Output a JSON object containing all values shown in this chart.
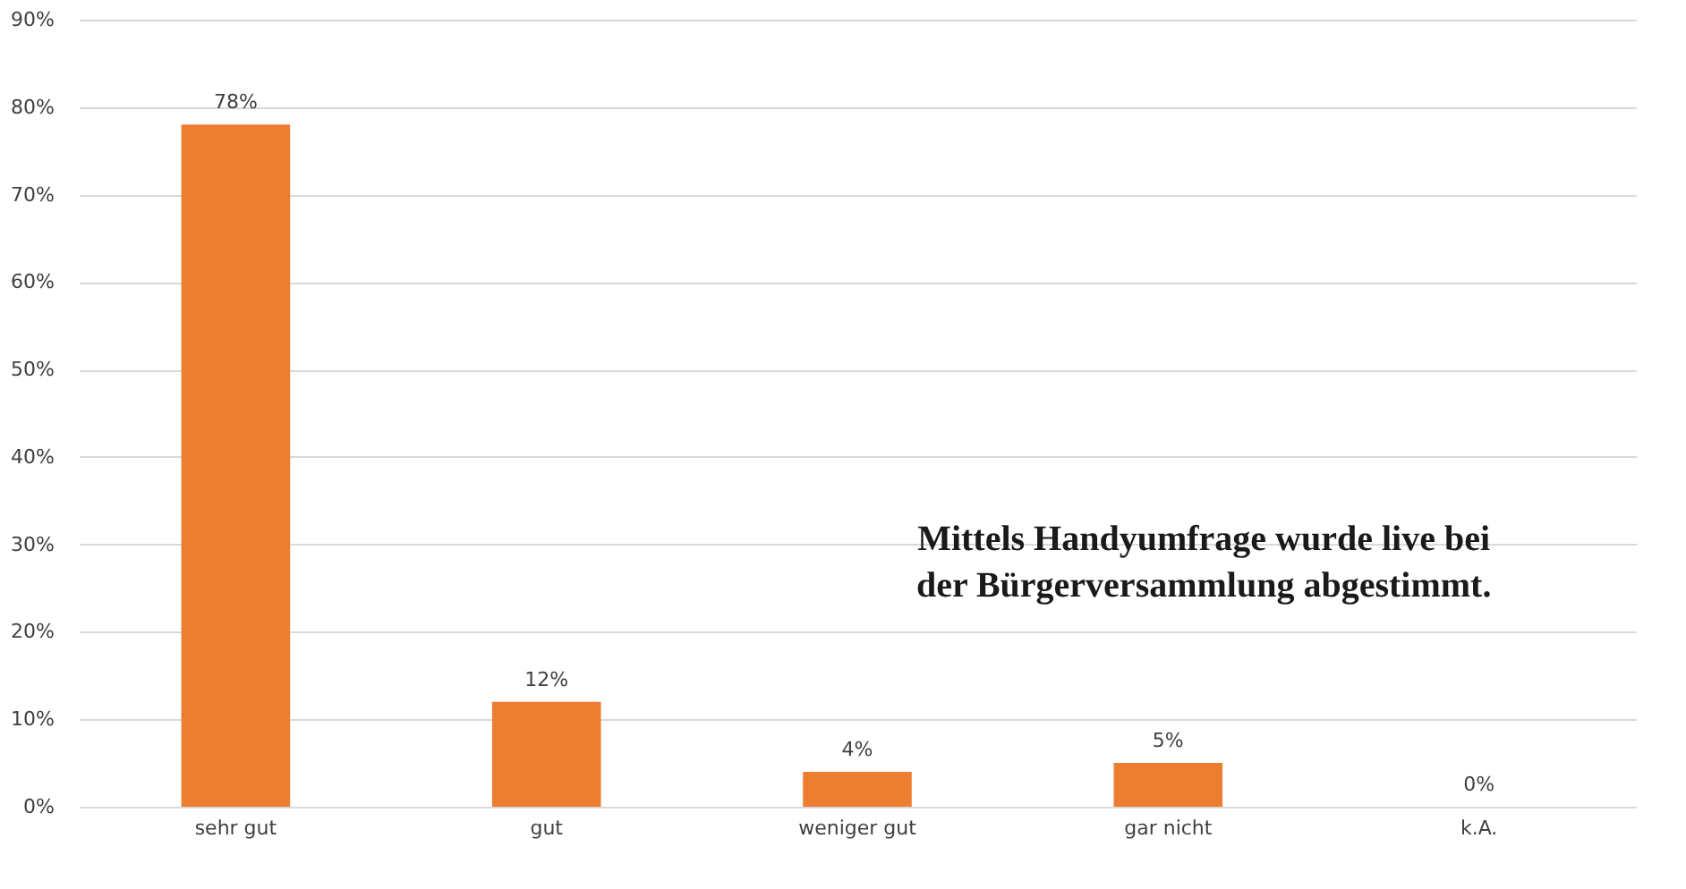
{
  "chart_data": {
    "type": "bar",
    "categories": [
      "sehr gut",
      "gut",
      "weniger gut",
      "gar nicht",
      "k.A."
    ],
    "values": [
      78,
      12,
      4,
      5,
      0
    ],
    "value_labels": [
      "78%",
      "12%",
      "4%",
      "5%",
      "0%"
    ],
    "color": "#ed7d31",
    "ylim": [
      0,
      90
    ],
    "yticks": [
      {
        "value": 0,
        "label": "0%"
      },
      {
        "value": 10,
        "label": "10%"
      },
      {
        "value": 20,
        "label": "20%"
      },
      {
        "value": 30,
        "label": "30%"
      },
      {
        "value": 40,
        "label": "40%"
      },
      {
        "value": 50,
        "label": "50%"
      },
      {
        "value": 60,
        "label": "60%"
      },
      {
        "value": 70,
        "label": "70%"
      },
      {
        "value": 80,
        "label": "80%"
      },
      {
        "value": 90,
        "label": "90%"
      }
    ],
    "grid": "y",
    "annotations": [
      "Mittels Handyumfrage wurde live bei der Bürgerversammlung abgestimmt."
    ]
  }
}
